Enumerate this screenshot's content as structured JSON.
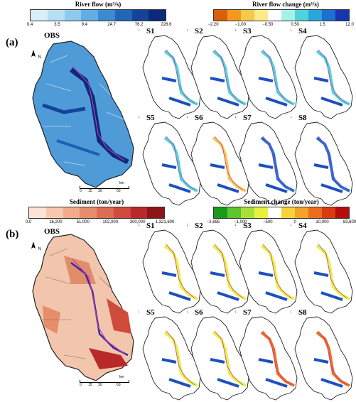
{
  "panel_a": {
    "letter": "(a)",
    "obs_label": "OBS",
    "flow_legend": {
      "title": "River flow (m³/s)",
      "ticks": [
        "0.4",
        "3.5",
        "9.4",
        "24.7",
        "76.2",
        "228.6"
      ],
      "colors": [
        "#d8eefa",
        "#b6def5",
        "#8fcaee",
        "#62aee3",
        "#3b8bd2",
        "#2166b8",
        "#14449a",
        "#0b2a78"
      ]
    },
    "change_legend": {
      "title": "River flow change (m³/s)",
      "ticks": [
        "−2.20",
        "−1.00",
        "−0.50",
        "0.50",
        "1.5",
        "12.0"
      ],
      "colors": [
        "#d95f0e",
        "#f39a1e",
        "#f7c94a",
        "#fbe98a",
        "#ffffff",
        "#a6f1e6",
        "#4fd2da",
        "#2aa6d9",
        "#1d6fd0",
        "#1536b0"
      ]
    },
    "scenarios": [
      "S1",
      "S2",
      "S3",
      "S4",
      "S5",
      "S6",
      "S7",
      "S8"
    ]
  },
  "panel_b": {
    "letter": "(b)",
    "obs_label": "OBS",
    "sed_legend": {
      "title": "Sediment (ton/year)",
      "ticks": [
        "0.0",
        "16,200",
        "51,000",
        "102,000",
        "300,000",
        "1,321,600"
      ],
      "colors": [
        "#fbe4d5",
        "#f6c9ae",
        "#efab8a",
        "#e68d6c",
        "#dc6c52",
        "#cf4b3b",
        "#b8292a",
        "#8f1418"
      ]
    },
    "change_legend": {
      "title": "Sediment change (ton/year)",
      "ticks": [
        "−2,695",
        "−1,000",
        "−500",
        "0",
        "10,000",
        "83,600"
      ],
      "colors": [
        "#1a9a1a",
        "#5cc42c",
        "#a8e03a",
        "#e8f23a",
        "#ffffff",
        "#f7d33a",
        "#f2a32a",
        "#ea6e1e",
        "#d93a12",
        "#b80d0d"
      ]
    },
    "scenarios": [
      "S1",
      "S2",
      "S3",
      "S4",
      "S5",
      "S6",
      "S7",
      "S8"
    ]
  },
  "map_misc": {
    "north_label": "N",
    "scale_ticks": [
      "0",
      "15",
      "30",
      "60"
    ],
    "scale_unit": "km"
  }
}
